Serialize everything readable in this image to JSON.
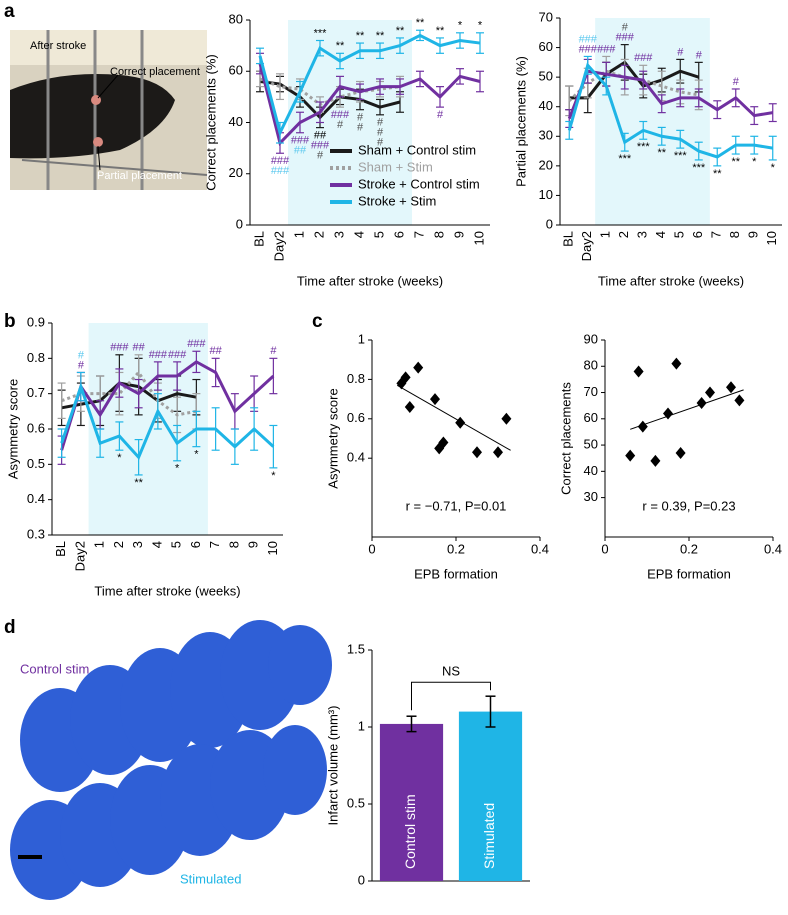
{
  "panel_labels": [
    "a",
    "b",
    "c",
    "d"
  ],
  "photo": {
    "labels": [
      "After stroke",
      "Correct placement",
      "Partial placement"
    ]
  },
  "histology": {
    "labels": [
      "Control stim",
      "Stimulated"
    ]
  },
  "chart_data": [
    {
      "type": "line",
      "ylabel": "Correct placements (%)",
      "xlabel": "Time after stroke (weeks)",
      "categories": [
        "BL",
        "Day2",
        "1",
        "2",
        "3",
        "4",
        "5",
        "6",
        "7",
        "8",
        "9",
        "10"
      ],
      "ylim": [
        0,
        80
      ],
      "yticks": [
        0,
        20,
        40,
        60,
        80
      ],
      "shade": [
        "1",
        "6"
      ],
      "legend": "lower right",
      "series": [
        {
          "name": "Sham + Control stim",
          "color": "#1a1a1a",
          "style": "solid",
          "values": [
            56,
            55,
            50,
            42,
            50,
            49,
            46,
            48,
            null,
            null,
            null,
            null
          ],
          "errors": [
            4,
            3,
            4,
            4,
            3,
            4,
            3,
            4,
            null,
            null,
            null,
            null
          ]
        },
        {
          "name": "Sham + Stim",
          "color": "#a0a0a0",
          "style": "dotted",
          "values": [
            57,
            54,
            53,
            47,
            50,
            52,
            53,
            54,
            null,
            null,
            null,
            null
          ],
          "errors": [
            3,
            5,
            4,
            3,
            4,
            4,
            3,
            4,
            null,
            null,
            null,
            null
          ]
        },
        {
          "name": "Stroke + Control stim",
          "color": "#7030a0",
          "style": "solid",
          "values": [
            63,
            32,
            40,
            44,
            54,
            52,
            54,
            54,
            57,
            50,
            58,
            56
          ],
          "errors": [
            4,
            4,
            4,
            4,
            4,
            3,
            3,
            3,
            3,
            4,
            3,
            4
          ]
        },
        {
          "name": "Stroke + Stim",
          "color": "#1fb5e6",
          "style": "solid",
          "values": [
            66,
            36,
            52,
            69,
            64,
            68,
            68,
            70,
            74,
            70,
            72,
            71
          ],
          "errors": [
            3,
            4,
            4,
            3,
            3,
            3,
            3,
            3,
            2,
            3,
            3,
            4
          ]
        }
      ],
      "annotations_above": [
        {
          "at": "2",
          "text": "***",
          "color": "#000"
        },
        {
          "at": "3",
          "text": "**",
          "color": "#000"
        },
        {
          "at": "4",
          "text": "**",
          "color": "#000"
        },
        {
          "at": "5",
          "text": "**",
          "color": "#000"
        },
        {
          "at": "6",
          "text": "**",
          "color": "#000"
        },
        {
          "at": "7",
          "text": "**",
          "color": "#000"
        },
        {
          "at": "8",
          "text": "**",
          "color": "#000"
        },
        {
          "at": "9",
          "text": "*",
          "color": "#000"
        },
        {
          "at": "10",
          "text": "*",
          "color": "#000"
        }
      ],
      "annotations_below": [
        {
          "at": "Day2",
          "text": "###",
          "color": "#7030a0"
        },
        {
          "at": "Day2",
          "text": "###",
          "color": "#5bc8ee"
        },
        {
          "at": "1",
          "text": "###",
          "color": "#7030a0"
        },
        {
          "at": "1",
          "text": "##",
          "color": "#5bc8ee"
        },
        {
          "at": "2",
          "text": "##",
          "color": "#000"
        },
        {
          "at": "2",
          "text": "###",
          "color": "#7030a0"
        },
        {
          "at": "2",
          "text": "#",
          "color": "#555"
        },
        {
          "at": "3",
          "text": "###",
          "color": "#7030a0"
        },
        {
          "at": "3",
          "text": "#",
          "color": "#555"
        },
        {
          "at": "4",
          "text": "#",
          "color": "#555"
        },
        {
          "at": "4",
          "text": "#",
          "color": "#555"
        },
        {
          "at": "5",
          "text": "#",
          "color": "#555"
        },
        {
          "at": "5",
          "text": "#",
          "color": "#555"
        },
        {
          "at": "5",
          "text": "#",
          "color": "#555"
        },
        {
          "at": "8",
          "text": "#",
          "color": "#7030a0"
        }
      ]
    },
    {
      "type": "line",
      "ylabel": "Partial  placements (%)",
      "xlabel": "Time after stroke (weeks)",
      "categories": [
        "BL",
        "Day2",
        "1",
        "2",
        "3",
        "4",
        "5",
        "6",
        "7",
        "8",
        "9",
        "10"
      ],
      "ylim": [
        0,
        70
      ],
      "yticks": [
        0,
        10,
        20,
        30,
        40,
        50,
        60,
        70
      ],
      "shade": [
        "1",
        "6"
      ],
      "series": [
        {
          "color": "#1a1a1a",
          "style": "solid",
          "values": [
            43,
            43,
            51,
            55,
            47,
            49,
            52,
            50,
            null,
            null,
            null,
            null
          ],
          "errors": [
            4,
            5,
            4,
            6,
            4,
            4,
            4,
            5,
            null,
            null,
            null,
            null
          ]
        },
        {
          "color": "#a0a0a0",
          "style": "dotted",
          "values": [
            42,
            48,
            52,
            50,
            49,
            47,
            45,
            44,
            null,
            null,
            null,
            null
          ],
          "errors": [
            5,
            5,
            5,
            6,
            5,
            5,
            4,
            5,
            null,
            null,
            null,
            null
          ]
        },
        {
          "color": "#7030a0",
          "style": "solid",
          "values": [
            36,
            52,
            51,
            50,
            49,
            41,
            43,
            43,
            39,
            43,
            37,
            38
          ],
          "errors": [
            3,
            4,
            4,
            4,
            3,
            3,
            3,
            3,
            3,
            3,
            3,
            3
          ]
        },
        {
          "color": "#1fb5e6",
          "style": "solid",
          "values": [
            32,
            54,
            47,
            28,
            32,
            30,
            29,
            25,
            23,
            27,
            27,
            26
          ],
          "errors": [
            3,
            3,
            3,
            3,
            3,
            3,
            3,
            3,
            3,
            3,
            3,
            4
          ]
        }
      ],
      "annotations_above": [
        {
          "at": "Day2",
          "text": "###",
          "color": "#7030a0"
        },
        {
          "at": "Day2",
          "text": "###",
          "color": "#5bc8ee"
        },
        {
          "at": "1",
          "text": "###",
          "color": "#7030a0"
        },
        {
          "at": "2",
          "text": "###",
          "color": "#7030a0"
        },
        {
          "at": "2",
          "text": "#",
          "color": "#555"
        },
        {
          "at": "3",
          "text": "###",
          "color": "#7030a0"
        },
        {
          "at": "5",
          "text": "#",
          "color": "#7030a0"
        },
        {
          "at": "6",
          "text": "#",
          "color": "#7030a0"
        },
        {
          "at": "8",
          "text": "#",
          "color": "#7030a0"
        }
      ],
      "annotations_below": [
        {
          "at": "2",
          "text": "***",
          "color": "#000"
        },
        {
          "at": "3",
          "text": "***",
          "color": "#000"
        },
        {
          "at": "4",
          "text": "**",
          "color": "#000"
        },
        {
          "at": "5",
          "text": "***",
          "color": "#000"
        },
        {
          "at": "6",
          "text": "***",
          "color": "#000"
        },
        {
          "at": "7",
          "text": "**",
          "color": "#000"
        },
        {
          "at": "8",
          "text": "**",
          "color": "#000"
        },
        {
          "at": "9",
          "text": "*",
          "color": "#000"
        },
        {
          "at": "10",
          "text": "*",
          "color": "#000"
        }
      ]
    },
    {
      "type": "line",
      "ylabel": "Asymmetry score",
      "xlabel": "Time after stroke (weeks)",
      "categories": [
        "BL",
        "Day2",
        "1",
        "2",
        "3",
        "4",
        "5",
        "6",
        "7",
        "8",
        "9",
        "10"
      ],
      "ylim": [
        0.3,
        0.9
      ],
      "yticks": [
        0.3,
        0.4,
        0.5,
        0.6,
        0.7,
        0.8,
        0.9
      ],
      "shade": [
        "1",
        "6"
      ],
      "series": [
        {
          "color": "#1a1a1a",
          "style": "solid",
          "values": [
            0.66,
            0.67,
            0.68,
            0.73,
            0.72,
            0.68,
            0.7,
            0.69,
            null,
            null,
            null,
            null
          ],
          "errors": [
            0.05,
            0.06,
            0.07,
            0.08,
            0.08,
            0.06,
            0.05,
            0.05,
            null,
            null,
            null,
            null
          ]
        },
        {
          "color": "#a0a0a0",
          "style": "dotted",
          "values": [
            0.68,
            0.7,
            0.7,
            0.7,
            0.76,
            0.68,
            0.64,
            0.65,
            null,
            null,
            null,
            null
          ],
          "errors": [
            0.05,
            0.05,
            0.05,
            0.06,
            0.05,
            0.05,
            0.05,
            0.05,
            null,
            null,
            null,
            null
          ]
        },
        {
          "color": "#7030a0",
          "style": "solid",
          "values": [
            0.54,
            0.72,
            0.64,
            0.73,
            0.7,
            0.75,
            0.75,
            0.79,
            0.76,
            0.65,
            0.7,
            0.75
          ],
          "errors": [
            0.04,
            0.04,
            0.04,
            0.04,
            0.04,
            0.04,
            0.04,
            0.03,
            0.04,
            0.05,
            0.05,
            0.05
          ]
        },
        {
          "color": "#1fb5e6",
          "style": "solid",
          "values": [
            0.56,
            0.72,
            0.56,
            0.58,
            0.52,
            0.65,
            0.56,
            0.6,
            0.6,
            0.55,
            0.6,
            0.55
          ],
          "errors": [
            0.04,
            0.04,
            0.04,
            0.04,
            0.05,
            0.05,
            0.05,
            0.05,
            0.06,
            0.05,
            0.06,
            0.06
          ]
        }
      ],
      "annotations_above": [
        {
          "at": "Day2",
          "text": "#",
          "color": "#7030a0"
        },
        {
          "at": "Day2",
          "text": "#",
          "color": "#5bc8ee"
        },
        {
          "at": "2",
          "text": "###",
          "color": "#7030a0"
        },
        {
          "at": "3",
          "text": "##",
          "color": "#7030a0"
        },
        {
          "at": "4",
          "text": "###",
          "color": "#7030a0"
        },
        {
          "at": "5",
          "text": "###",
          "color": "#7030a0"
        },
        {
          "at": "6",
          "text": "###",
          "color": "#7030a0"
        },
        {
          "at": "7",
          "text": "##",
          "color": "#7030a0"
        },
        {
          "at": "10",
          "text": "#",
          "color": "#7030a0"
        }
      ],
      "annotations_below": [
        {
          "at": "2",
          "text": "*",
          "color": "#000"
        },
        {
          "at": "3",
          "text": "**",
          "color": "#000"
        },
        {
          "at": "5",
          "text": "*",
          "color": "#000"
        },
        {
          "at": "6",
          "text": "*",
          "color": "#000"
        },
        {
          "at": "10",
          "text": "*",
          "color": "#000"
        }
      ]
    },
    {
      "type": "scatter",
      "ylabel": "Asymmetry score",
      "xlabel": "EPB formation",
      "annotation": "r = −0.71, P=0.01",
      "x": [
        0.07,
        0.08,
        0.09,
        0.11,
        0.15,
        0.16,
        0.17,
        0.21,
        0.25,
        0.3,
        0.32
      ],
      "values": [
        0.78,
        0.81,
        0.66,
        0.86,
        0.7,
        0.45,
        0.48,
        0.58,
        0.43,
        0.43,
        0.6
      ],
      "fit": {
        "x": [
          0.06,
          0.33
        ],
        "y": [
          0.77,
          0.44
        ]
      },
      "xlim": [
        0,
        0.4
      ],
      "xticks": [
        0,
        0.2,
        0.4
      ],
      "ylim": [
        0,
        1
      ],
      "yticks": [
        0.4,
        0.6,
        0.8,
        1
      ],
      "color": "#000"
    },
    {
      "type": "scatter",
      "ylabel": "Correct placements",
      "xlabel": "EPB formation",
      "annotation": "r = 0.39, P=0.23",
      "x": [
        0.06,
        0.08,
        0.09,
        0.12,
        0.15,
        0.17,
        0.18,
        0.23,
        0.25,
        0.3,
        0.32
      ],
      "values": [
        46,
        78,
        57,
        44,
        62,
        81,
        47,
        66,
        70,
        72,
        67
      ],
      "fit": {
        "x": [
          0.06,
          0.33
        ],
        "y": [
          56,
          71
        ]
      },
      "xlim": [
        0,
        0.4
      ],
      "xticks": [
        0,
        0.2,
        0.4
      ],
      "ylim": [
        15,
        90
      ],
      "yticks": [
        30,
        40,
        50,
        60,
        70,
        80,
        90
      ],
      "color": "#000"
    },
    {
      "type": "bar",
      "ylabel": "Infarct volume (mm³)",
      "annotation": "NS",
      "categories": [
        "Control stim",
        "Stimulated"
      ],
      "values": [
        1.02,
        1.1
      ],
      "errors": [
        0.05,
        0.1
      ],
      "colors": [
        "#7030a0",
        "#1fb5e6"
      ],
      "ylim": [
        0,
        1.5
      ],
      "yticks": [
        0,
        0.5,
        1,
        1.5
      ]
    }
  ]
}
